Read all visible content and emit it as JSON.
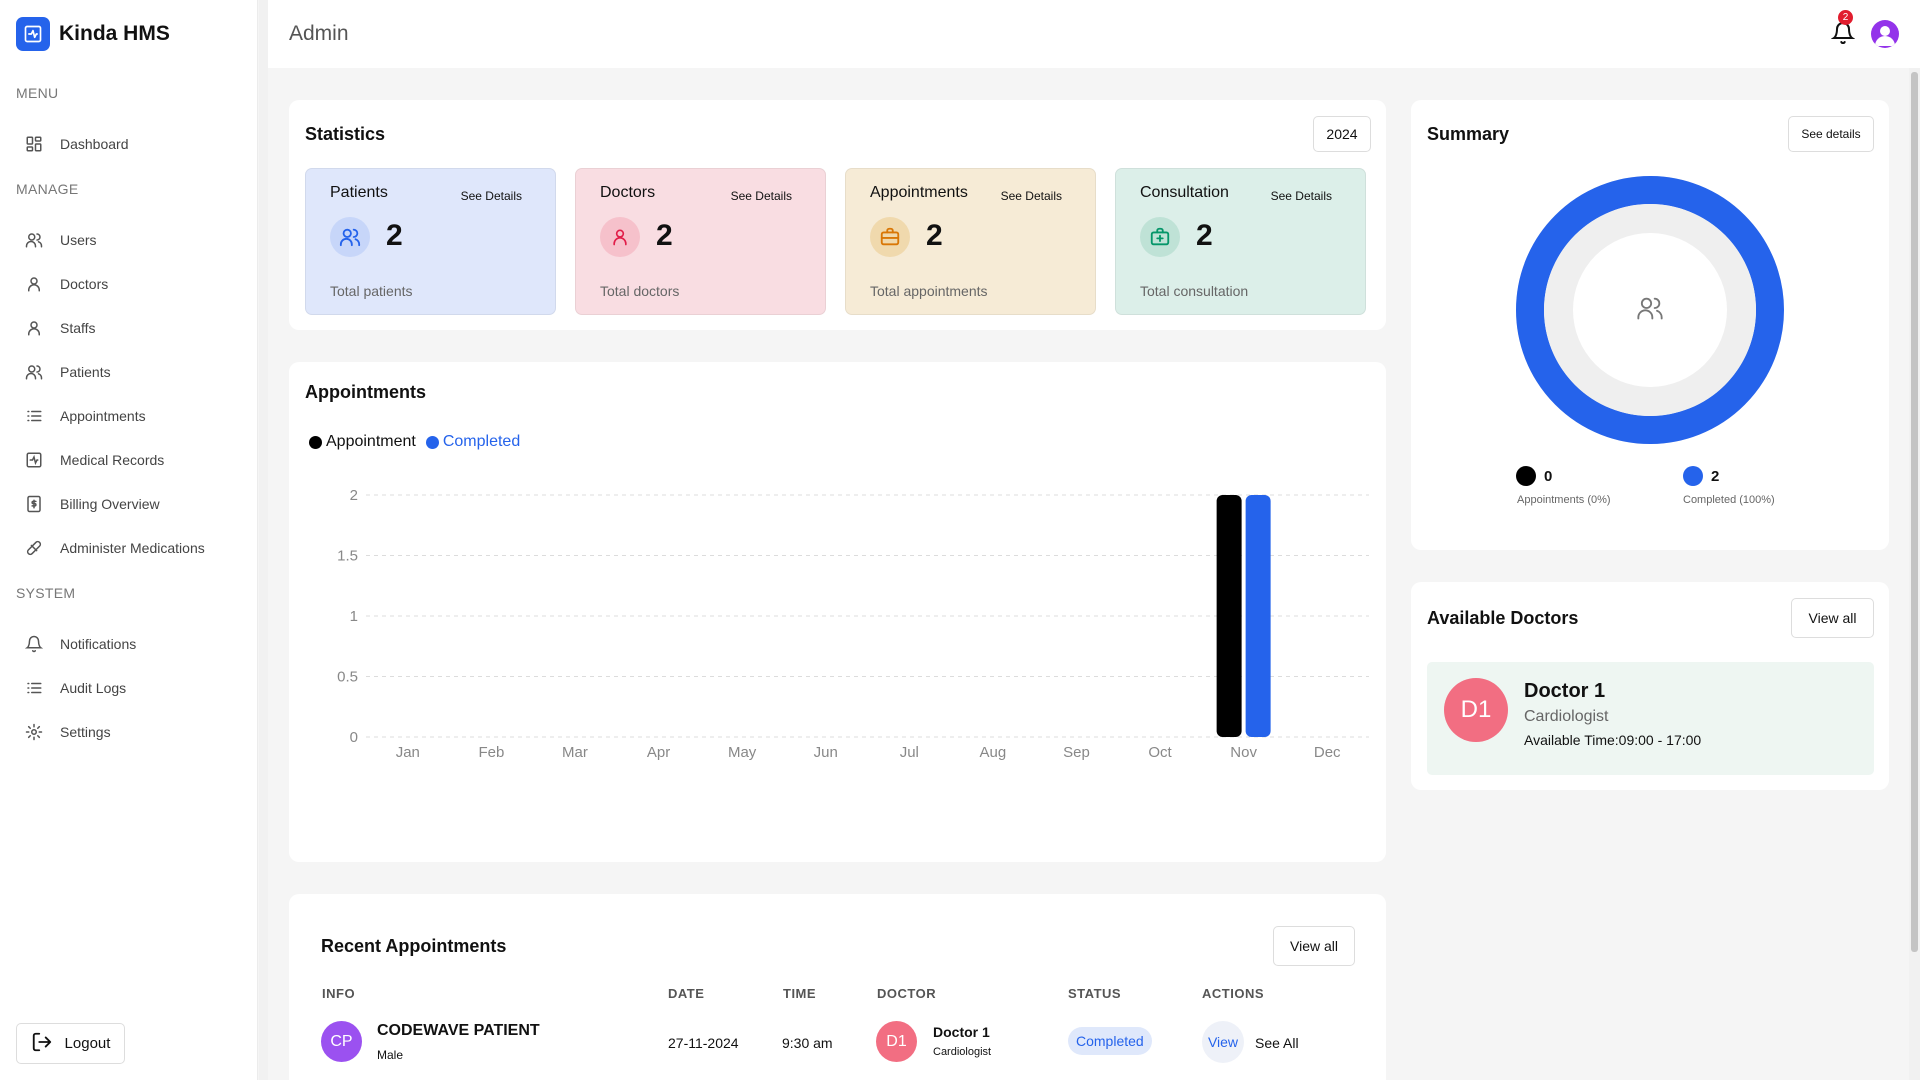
{
  "app": {
    "name": "Kinda HMS"
  },
  "sidebar": {
    "sections": [
      "MENU",
      "MANAGE",
      "SYSTEM"
    ],
    "items": [
      {
        "label": "Dashboard",
        "icon": "grid-icon"
      },
      {
        "label": "Users",
        "icon": "users-icon"
      },
      {
        "label": "Doctors",
        "icon": "user-icon"
      },
      {
        "label": "Staffs",
        "icon": "user-icon"
      },
      {
        "label": "Patients",
        "icon": "users-icon"
      },
      {
        "label": "Appointments",
        "icon": "list-icon"
      },
      {
        "label": "Medical Records",
        "icon": "medical-record-icon"
      },
      {
        "label": "Billing Overview",
        "icon": "billing-icon"
      },
      {
        "label": "Administer Medications",
        "icon": "pill-icon"
      },
      {
        "label": "Notifications",
        "icon": "bell-icon"
      },
      {
        "label": "Audit Logs",
        "icon": "list-icon"
      },
      {
        "label": "Settings",
        "icon": "gear-icon"
      }
    ],
    "logout_label": "Logout"
  },
  "header": {
    "title": "Admin",
    "notification_count": "2"
  },
  "statistics": {
    "title": "Statistics",
    "year": "2024",
    "cards": [
      {
        "label": "Patients",
        "link": "See Details",
        "value": "2",
        "sub": "Total patients",
        "bg": "#dfe7fb",
        "circle": "#c7d6f9",
        "icon_color": "#2563eb"
      },
      {
        "label": "Doctors",
        "link": "See Details",
        "value": "2",
        "sub": "Total doctors",
        "bg": "#f9dde2",
        "circle": "#f6c1cb",
        "icon_color": "#e11d48"
      },
      {
        "label": "Appointments",
        "link": "See Details",
        "value": "2",
        "sub": "Total appointments",
        "bg": "#f6ebd6",
        "circle": "#f0d9ad",
        "icon_color": "#d97706"
      },
      {
        "label": "Consultation",
        "link": "See Details",
        "value": "2",
        "sub": "Total consultation",
        "bg": "#dcefe9",
        "circle": "#bfe2d6",
        "icon_color": "#059669"
      }
    ]
  },
  "appointments_chart": {
    "title": "Appointments",
    "legend": [
      {
        "name": "Appointment",
        "color": "#000000"
      },
      {
        "name": "Completed",
        "color": "#2563eb"
      }
    ]
  },
  "chart_data": {
    "type": "bar",
    "title": "Appointments",
    "categories": [
      "Jan",
      "Feb",
      "Mar",
      "Apr",
      "May",
      "Jun",
      "Jul",
      "Aug",
      "Sep",
      "Oct",
      "Nov",
      "Dec"
    ],
    "series": [
      {
        "name": "Appointment",
        "color": "#000000",
        "values": [
          0,
          0,
          0,
          0,
          0,
          0,
          0,
          0,
          0,
          0,
          2,
          0
        ]
      },
      {
        "name": "Completed",
        "color": "#2563eb",
        "values": [
          0,
          0,
          0,
          0,
          0,
          0,
          0,
          0,
          0,
          0,
          2,
          0
        ]
      }
    ],
    "yticks": [
      "0",
      "0.5",
      "1",
      "1.5",
      "2"
    ],
    "ylim": [
      0,
      2
    ],
    "grid": true,
    "legend_position": "top-left"
  },
  "summary": {
    "title": "Summary",
    "button": "See details",
    "appointments": {
      "value": "0",
      "label": "Appointments (0%)",
      "color": "#000000"
    },
    "completed": {
      "value": "2",
      "label": "Completed (100%)",
      "color": "#2563eb"
    },
    "completed_fraction": 1.0
  },
  "available_doctors": {
    "title": "Available Doctors",
    "button": "View all",
    "doctors": [
      {
        "initials": "D1",
        "name": "Doctor 1",
        "specialty": "Cardiologist",
        "available": "Available Time:09:00 - 17:00"
      }
    ]
  },
  "recent_appointments": {
    "title": "Recent Appointments",
    "button": "View all",
    "columns": [
      "INFO",
      "DATE",
      "TIME",
      "DOCTOR",
      "STATUS",
      "ACTIONS"
    ],
    "rows": [
      {
        "patient_initials": "CP",
        "patient_name": "CODEWAVE PATIENT",
        "gender": "Male",
        "date": "27-11-2024",
        "time": "9:30 am",
        "doctor_initials": "D1",
        "doctor_name": "Doctor 1",
        "doctor_specialty": "Cardiologist",
        "status": "Completed",
        "view": "View",
        "see_all": "See All"
      }
    ]
  }
}
